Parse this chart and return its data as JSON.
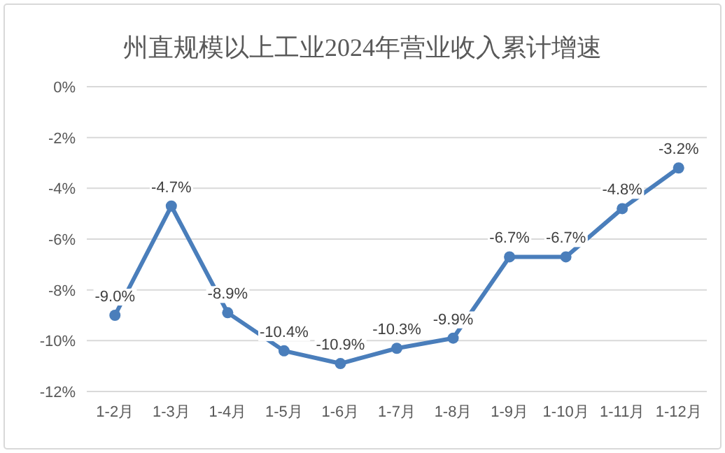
{
  "chart_data": {
    "type": "line",
    "title": "州直规模以上工业2024年营业收入累计增速",
    "categories": [
      "1-2月",
      "1-3月",
      "1-4月",
      "1-5月",
      "1-6月",
      "1-7月",
      "1-8月",
      "1-9月",
      "1-10月",
      "1-11月",
      "1-12月"
    ],
    "values": [
      -9.0,
      -4.7,
      -8.9,
      -10.4,
      -10.9,
      -10.3,
      -9.9,
      -6.7,
      -6.7,
      -4.8,
      -3.2
    ],
    "value_labels": [
      "-9.0%",
      "-4.7%",
      "-8.9%",
      "-10.4%",
      "-10.9%",
      "-10.3%",
      "-9.9%",
      "-6.7%",
      "-6.7%",
      "-4.8%",
      "-3.2%"
    ],
    "color": "#4a7ebb",
    "marker": "circle",
    "line_style": "solid",
    "ylim": [
      -12,
      0
    ],
    "yticks": [
      {
        "value": 0,
        "label": "0%"
      },
      {
        "value": -2,
        "label": "-2%"
      },
      {
        "value": -4,
        "label": "-4%"
      },
      {
        "value": -6,
        "label": "-6%"
      },
      {
        "value": -8,
        "label": "-8%"
      },
      {
        "value": -10,
        "label": "-10%"
      },
      {
        "value": -12,
        "label": "-12%"
      }
    ],
    "grid": "y"
  }
}
